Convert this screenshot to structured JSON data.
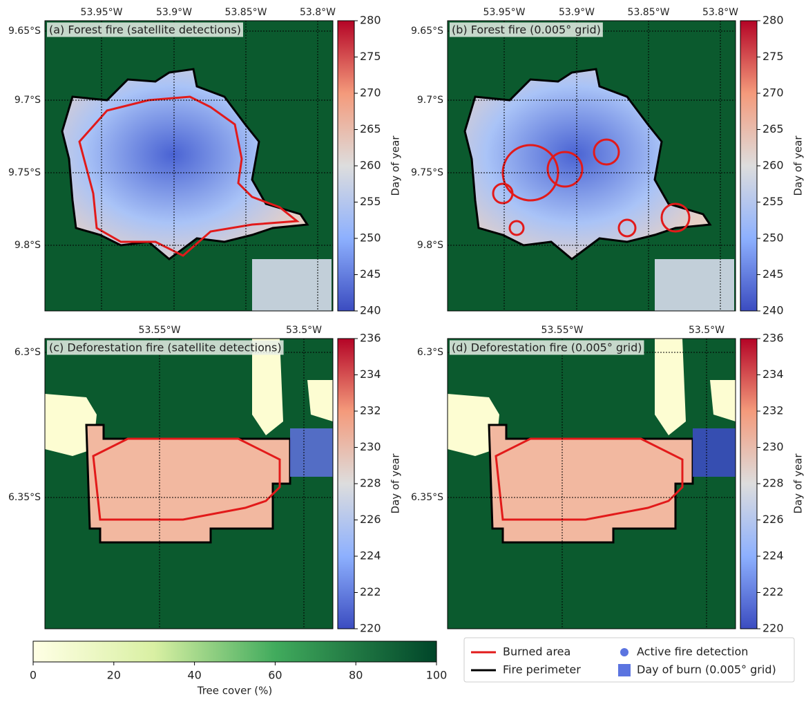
{
  "panels": [
    {
      "title": "(a) Forest fire (satellite detections)",
      "lon_labels": [
        "53.95°W",
        "53.9°W",
        "53.85°W",
        "53.8°W"
      ],
      "lat_labels": [
        "9.65°S",
        "9.7°S",
        "9.75°S",
        "9.8°S"
      ],
      "colorbar": {
        "label": "Day of year",
        "lim": [
          240,
          280
        ],
        "ticks": [
          240,
          245,
          250,
          255,
          260,
          265,
          270,
          275,
          280
        ]
      }
    },
    {
      "title": "(b) Forest fire (0.005° grid)",
      "lon_labels": [
        "53.95°W",
        "53.9°W",
        "53.85°W",
        "53.8°W"
      ],
      "lat_labels": [
        "9.65°S",
        "9.7°S",
        "9.75°S",
        "9.8°S"
      ],
      "colorbar": {
        "label": "Day of year",
        "lim": [
          240,
          280
        ],
        "ticks": [
          240,
          245,
          250,
          255,
          260,
          265,
          270,
          275,
          280
        ]
      }
    },
    {
      "title": "(c) Deforestation fire (satellite detections)",
      "lon_labels": [
        "53.55°W",
        "53.5°W"
      ],
      "lat_labels": [
        "6.3°S",
        "6.35°S"
      ],
      "colorbar": {
        "label": "Day of year",
        "lim": [
          220,
          236
        ],
        "ticks": [
          220,
          222,
          224,
          226,
          228,
          230,
          232,
          234,
          236
        ]
      }
    },
    {
      "title": "(d) Deforestation fire (0.005° grid)",
      "lon_labels": [
        "53.55°W",
        "53.5°W"
      ],
      "lat_labels": [
        "6.3°S",
        "6.35°S"
      ],
      "colorbar": {
        "label": "Day of year",
        "lim": [
          220,
          236
        ],
        "ticks": [
          220,
          222,
          224,
          226,
          228,
          230,
          232,
          234,
          236
        ]
      }
    }
  ],
  "tree_cover": {
    "label": "Tree cover (%)",
    "lim": [
      0,
      100
    ],
    "ticks": [
      0,
      20,
      40,
      60,
      80,
      100
    ]
  },
  "legend": [
    "Burned area",
    "Fire perimeter",
    "Active fire detection",
    "Day of burn (0.005° grid)"
  ]
}
